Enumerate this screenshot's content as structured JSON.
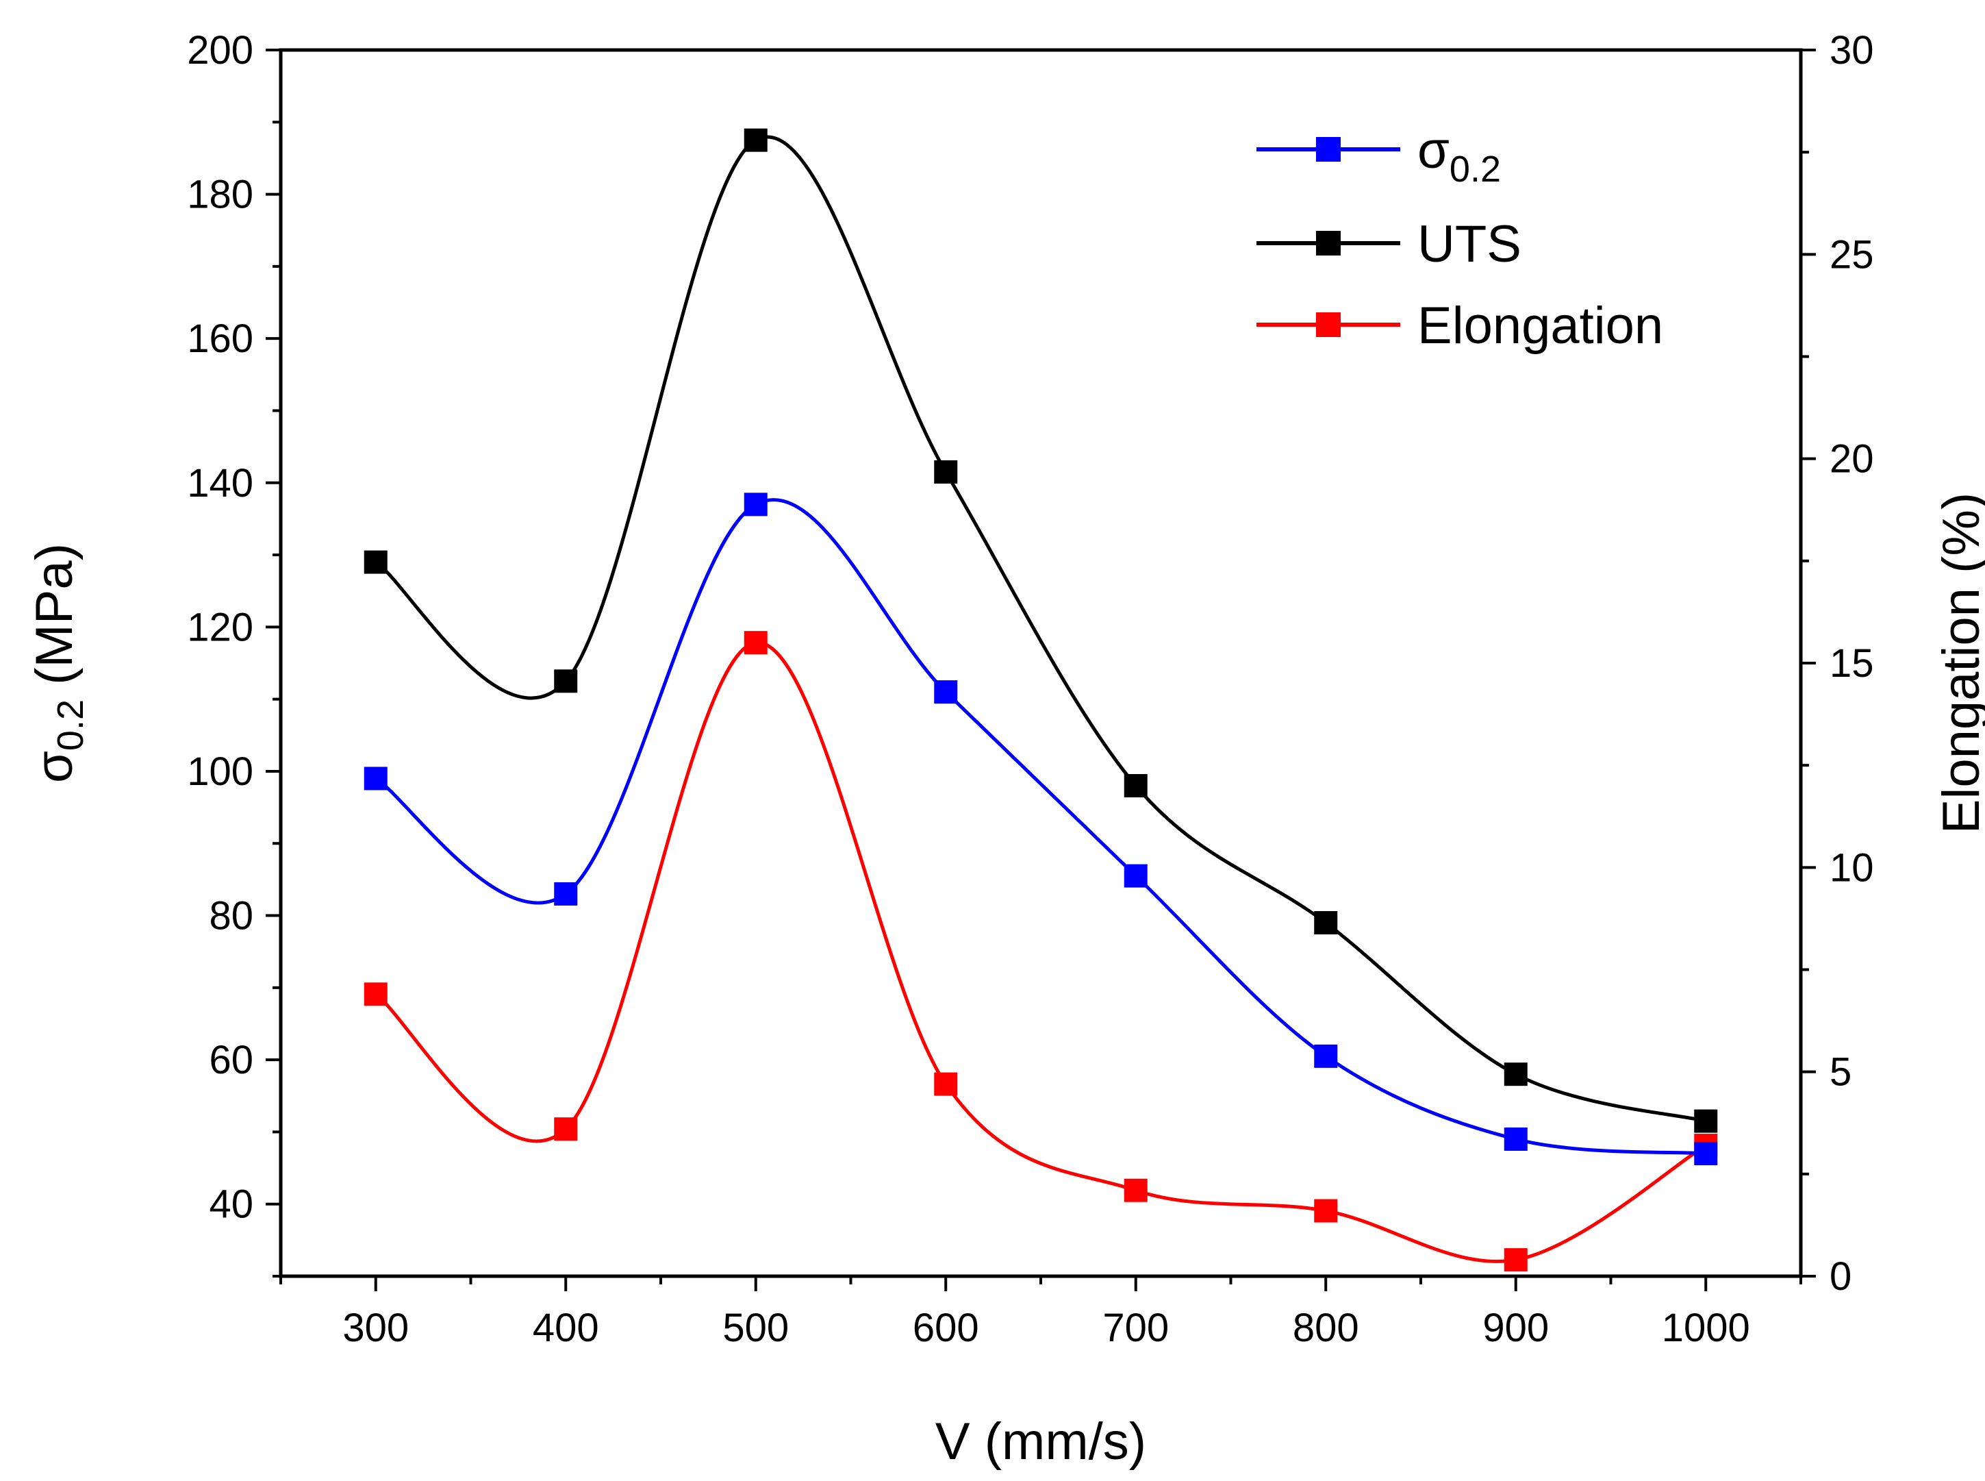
{
  "chart_data": {
    "type": "line",
    "x": [
      300,
      400,
      500,
      600,
      700,
      800,
      900,
      1000
    ],
    "xlabel": "V (mm/s)",
    "ylabel": "σ0.2 (MPa)",
    "ylabel_main": "σ",
    "ylabel_sub": "0.2",
    "ylabel_unit": " (MPa)",
    "y2label": "Elongation (%)",
    "xlim": [
      250,
      1050
    ],
    "ylim": [
      30,
      200
    ],
    "y2lim": [
      0,
      30
    ],
    "xticks": [
      300,
      400,
      500,
      600,
      700,
      800,
      900,
      1000
    ],
    "yticks": [
      40,
      60,
      80,
      100,
      120,
      140,
      160,
      180,
      200
    ],
    "y2ticks": [
      0,
      5,
      10,
      15,
      20,
      25,
      30
    ],
    "grid": false,
    "legend_position": "top-right",
    "series": [
      {
        "name": "σ0.2",
        "name_main": "σ",
        "name_sub": "0.2",
        "axis": "left",
        "color": "#0000ff",
        "values": [
          99,
          83,
          137,
          111,
          85.5,
          60.5,
          49,
          47
        ]
      },
      {
        "name": "UTS",
        "axis": "left",
        "color": "#000000",
        "values": [
          129,
          112.5,
          187.5,
          141.5,
          98,
          79,
          58,
          51.5
        ]
      },
      {
        "name": "Elongation",
        "axis": "right",
        "color": "#ff0000",
        "values": [
          6.9,
          3.6,
          15.5,
          4.7,
          2.1,
          1.6,
          0.4,
          3.2
        ]
      }
    ]
  }
}
